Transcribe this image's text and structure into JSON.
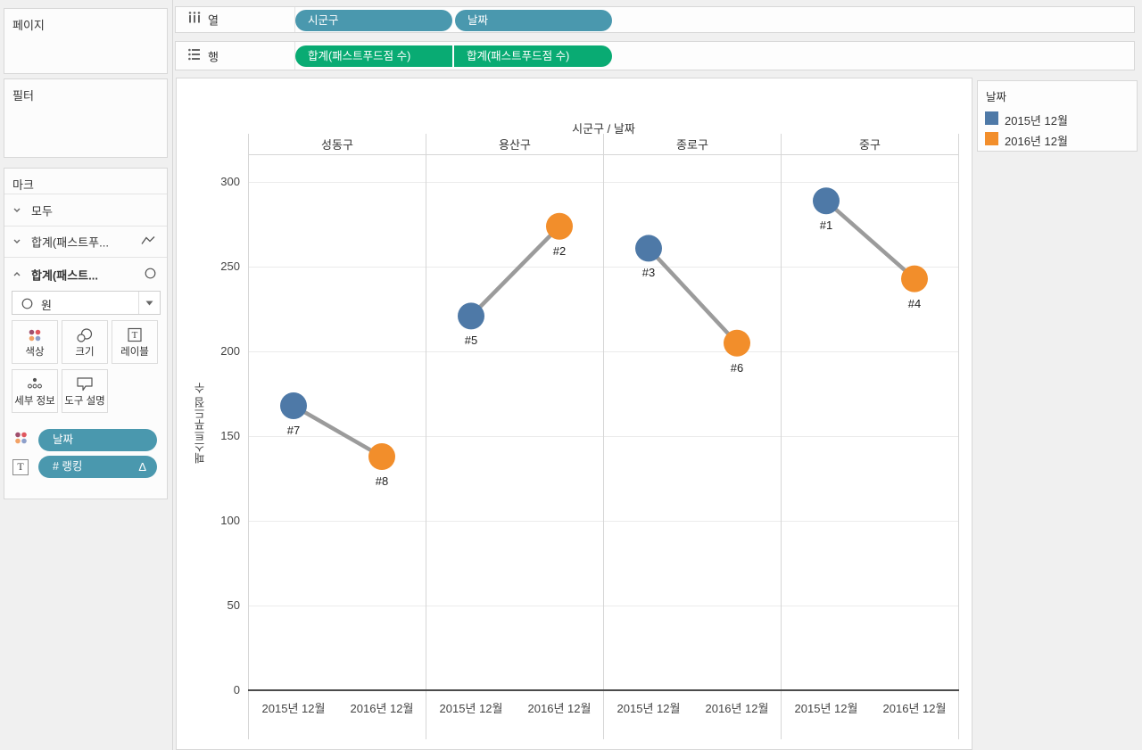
{
  "sidebar": {
    "pages": {
      "title": "페이지"
    },
    "filters": {
      "title": "필터"
    },
    "marks": {
      "title": "마크",
      "layers": [
        {
          "label": "모두",
          "chevron": "down",
          "mark_icon": "none",
          "bold": false
        },
        {
          "label": "합계(패스트푸...",
          "chevron": "down",
          "mark_icon": "line",
          "bold": false
        },
        {
          "label": "합계(패스트...",
          "chevron": "up",
          "mark_icon": "circle",
          "bold": true
        }
      ],
      "mark_type": {
        "value": "원",
        "icon": "circle"
      },
      "buttons": [
        {
          "id": "color",
          "label": "색상"
        },
        {
          "id": "size",
          "label": "크기"
        },
        {
          "id": "label",
          "label": "레이블"
        },
        {
          "id": "detail",
          "label": "세부 정보"
        },
        {
          "id": "tooltip",
          "label": "도구 설명"
        }
      ],
      "encoding_pills": [
        {
          "icon": "color",
          "label": "날짜",
          "suffix": ""
        },
        {
          "icon": "text",
          "label": "# 랭킹",
          "suffix": "Δ"
        }
      ]
    }
  },
  "shelves": {
    "columns": {
      "label": "열",
      "pills": [
        {
          "label": "시군구"
        },
        {
          "label": "날짜"
        }
      ]
    },
    "rows": {
      "label": "행",
      "pills": [
        {
          "label": "합계(패스트푸드점 수)"
        },
        {
          "label": "합계(패스트푸드점 수)"
        }
      ]
    }
  },
  "legend": {
    "title": "날짜",
    "items": [
      {
        "label": "2015년 12월",
        "color": "#4e79a7"
      },
      {
        "label": "2016년 12월",
        "color": "#f28e2b"
      }
    ]
  },
  "chart_data": {
    "type": "scatter",
    "title": "시군구 / 날짜",
    "ylabel": "패스트푸드점 수",
    "ylim": [
      0,
      316
    ],
    "yticks": [
      0,
      50,
      100,
      150,
      200,
      250,
      300
    ],
    "grid": true,
    "legend_position": "right",
    "panels": [
      "성동구",
      "용산구",
      "종로구",
      "중구"
    ],
    "x_categories": [
      "2015년 12월",
      "2016년 12월"
    ],
    "series": [
      {
        "name": "2015년 12월",
        "color": "#4e79a7",
        "values": [
          168,
          221,
          261,
          289
        ],
        "point_labels": [
          "#7",
          "#5",
          "#3",
          "#1"
        ]
      },
      {
        "name": "2016년 12월",
        "color": "#f28e2b",
        "values": [
          138,
          274,
          205,
          243
        ],
        "point_labels": [
          "#8",
          "#2",
          "#6",
          "#4"
        ]
      }
    ],
    "connector_color": "#9b9b9b"
  }
}
